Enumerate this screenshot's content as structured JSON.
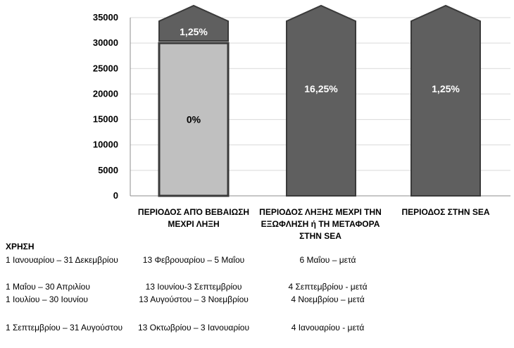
{
  "chart_data": {
    "type": "bar",
    "title": "",
    "xlabel": "",
    "ylabel": "",
    "ylim": [
      0,
      35000
    ],
    "yticks": [
      0,
      5000,
      10000,
      15000,
      20000,
      25000,
      30000,
      35000
    ],
    "grid": true,
    "categories": [
      "ΠΕΡΙΟΔΟΣ ΑΠΌ ΒΕΒΑΙΩΣΗ ΜΕΧΡΙ ΛΗΞΗ",
      "ΠΕΡΙΟΔΟΣ ΛΗΞΗΣ ΜΕΧΡΙ ΤΗΝ ΕΞΩΦΛΗΣΗ ή ΤΗ ΜΕΤΑΦΟΡΑ ΣΤΗΝ SEA",
      "ΠΕΡΙΟΔΟΣ ΣΤΗΝ SEA"
    ],
    "bars": [
      {
        "base_value": 30000,
        "base_label": "0%",
        "cap_label": "1,25%"
      },
      {
        "base_value": 35000,
        "base_label": "16,25%",
        "cap_label": ""
      },
      {
        "base_value": 35000,
        "base_label": "1,25%",
        "cap_label": ""
      }
    ],
    "colors": {
      "light_bar": "#c0c0c0",
      "dark_bar": "#5f5f5f",
      "outline": "#3a3a3a",
      "grid": "#d9d9d9"
    }
  },
  "table": {
    "header": "ΧΡΗΣΗ",
    "rows": [
      [
        "1 Ιανουαρίου – 31 Δεκεμβρίου",
        "13 Φεβρουαρίου – 5 Μαΐου",
        "6 Μαΐου – μετά"
      ],
      [
        "1 Μαΐου – 30 Απριλίου",
        "13 Ιουνίου-3 Σεπτεμβρίου",
        "4 Σεπτεμβρίου - μετά"
      ],
      [
        "1 Ιουλίου – 30 Ιουνίου",
        "13 Αυγούστου – 3 Νοεμβρίου",
        "4 Νοεμβρίου – μετά"
      ],
      [
        "1 Σεπτεμβρίου – 31 Αυγούστου",
        "13 Οκτωβρίου – 3 Ιανουαρίου",
        "4 Ιανουαρίου - μετά"
      ]
    ]
  }
}
